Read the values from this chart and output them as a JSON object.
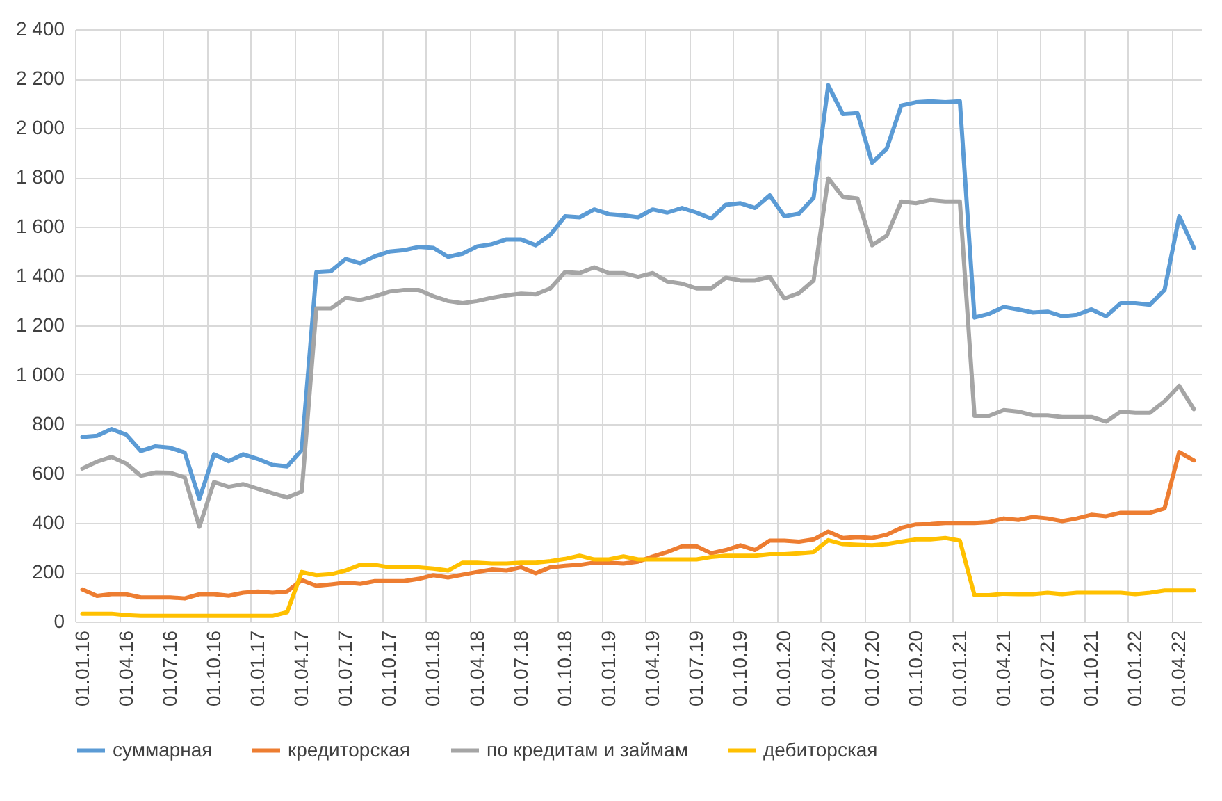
{
  "chart_data": {
    "type": "line",
    "categories": [
      "01.01.16",
      null,
      null,
      "01.04.16",
      null,
      null,
      "01.07.16",
      null,
      null,
      "01.10.16",
      null,
      null,
      "01.01.17",
      null,
      null,
      "01.04.17",
      null,
      null,
      "01.07.17",
      null,
      null,
      "01.10.17",
      null,
      null,
      "01.01.18",
      null,
      null,
      "01.04.18",
      null,
      null,
      "01.07.18",
      null,
      null,
      "01.10.18",
      null,
      null,
      "01.01.19",
      null,
      null,
      "01.04.19",
      null,
      null,
      "01.07.19",
      null,
      null,
      "01.10.19",
      null,
      null,
      "01.01.20",
      null,
      null,
      "01.04.20",
      null,
      null,
      "01.07.20",
      null,
      null,
      "01.10.20",
      null,
      null,
      "01.01.21",
      null,
      null,
      "01.04.21",
      null,
      null,
      "01.07.21",
      null,
      null,
      "01.10.21",
      null,
      null,
      "01.01.22",
      null,
      null,
      "01.04.22",
      null
    ],
    "series": [
      {
        "name": "суммарная",
        "color": "#5b9bd5",
        "values": [
          748,
          753,
          780,
          757,
          691,
          710,
          704,
          685,
          497,
          678,
          650,
          678,
          659,
          635,
          629,
          695,
          1416,
          1420,
          1469,
          1452,
          1480,
          1499,
          1505,
          1518,
          1514,
          1478,
          1491,
          1520,
          1529,
          1548,
          1548,
          1525,
          1567,
          1642,
          1638,
          1670,
          1651,
          1646,
          1638,
          1670,
          1657,
          1676,
          1657,
          1633,
          1689,
          1695,
          1676,
          1727,
          1642,
          1653,
          1717,
          2173,
          2056,
          2060,
          1859,
          1916,
          2091,
          2104,
          2108,
          2104,
          2108,
          1232,
          1247,
          1275,
          1265,
          1252,
          1256,
          1237,
          1243,
          1265,
          1237,
          1290,
          1290,
          1284,
          1344,
          1642,
          1514
        ]
      },
      {
        "name": "кредиторская",
        "color": "#ed7d31",
        "values": [
          130,
          104,
          111,
          111,
          98,
          98,
          98,
          94,
          111,
          111,
          105,
          117,
          122,
          117,
          122,
          168,
          145,
          151,
          158,
          153,
          164,
          164,
          164,
          173,
          188,
          179,
          190,
          201,
          211,
          207,
          220,
          196,
          220,
          226,
          230,
          239,
          239,
          235,
          243,
          264,
          282,
          305,
          305,
          277,
          290,
          309,
          290,
          328,
          328,
          324,
          333,
          365,
          339,
          343,
          339,
          352,
          380,
          394,
          395,
          399,
          399,
          399,
          403,
          418,
          412,
          424,
          418,
          407,
          418,
          433,
          427,
          441,
          441,
          441,
          459,
          687,
          653
        ]
      },
      {
        "name": "по кредитам и займам",
        "color": "#a5a5a5",
        "values": [
          620,
          648,
          667,
          640,
          591,
          604,
          603,
          584,
          384,
          565,
          546,
          557,
          538,
          520,
          503,
          527,
          1269,
          1269,
          1311,
          1303,
          1318,
          1337,
          1344,
          1344,
          1318,
          1299,
          1290,
          1299,
          1312,
          1322,
          1329,
          1326,
          1350,
          1416,
          1412,
          1435,
          1412,
          1412,
          1397,
          1412,
          1378,
          1369,
          1350,
          1350,
          1393,
          1382,
          1382,
          1397,
          1309,
          1331,
          1382,
          1796,
          1721,
          1714,
          1525,
          1563,
          1702,
          1695,
          1708,
          1702,
          1702,
          834,
          834,
          857,
          851,
          836,
          836,
          829,
          829,
          829,
          810,
          851,
          846,
          846,
          893,
          955,
          861
        ]
      },
      {
        "name": "дебиторская",
        "color": "#ffc000",
        "values": [
          32,
          32,
          32,
          26,
          23,
          23,
          23,
          23,
          23,
          23,
          23,
          23,
          23,
          23,
          38,
          201,
          188,
          192,
          207,
          230,
          230,
          220,
          220,
          220,
          215,
          207,
          239,
          239,
          235,
          235,
          239,
          239,
          245,
          254,
          267,
          252,
          252,
          264,
          252,
          252,
          252,
          252,
          252,
          262,
          267,
          267,
          267,
          273,
          273,
          277,
          282,
          330,
          314,
          311,
          309,
          314,
          324,
          333,
          333,
          339,
          328,
          107,
          107,
          113,
          111,
          111,
          117,
          111,
          117,
          117,
          117,
          117,
          111,
          117,
          126,
          126,
          126
        ]
      }
    ],
    "ylim": [
      0,
      2400
    ],
    "yticks": [
      0,
      200,
      400,
      600,
      800,
      {
        "value": 1000,
        "label": "1 000"
      },
      {
        "value": 1200,
        "label": "1 200"
      },
      {
        "value": 1400,
        "label": "1 400"
      },
      {
        "value": 1600,
        "label": "1 600"
      },
      {
        "value": 1800,
        "label": "1 800"
      },
      {
        "value": 2000,
        "label": "2 000"
      },
      {
        "value": 2200,
        "label": "2 200"
      },
      {
        "value": 2400,
        "label": "2 400"
      }
    ],
    "grid": true,
    "legend": "bottom",
    "line_style": "solid",
    "marker": "none"
  }
}
